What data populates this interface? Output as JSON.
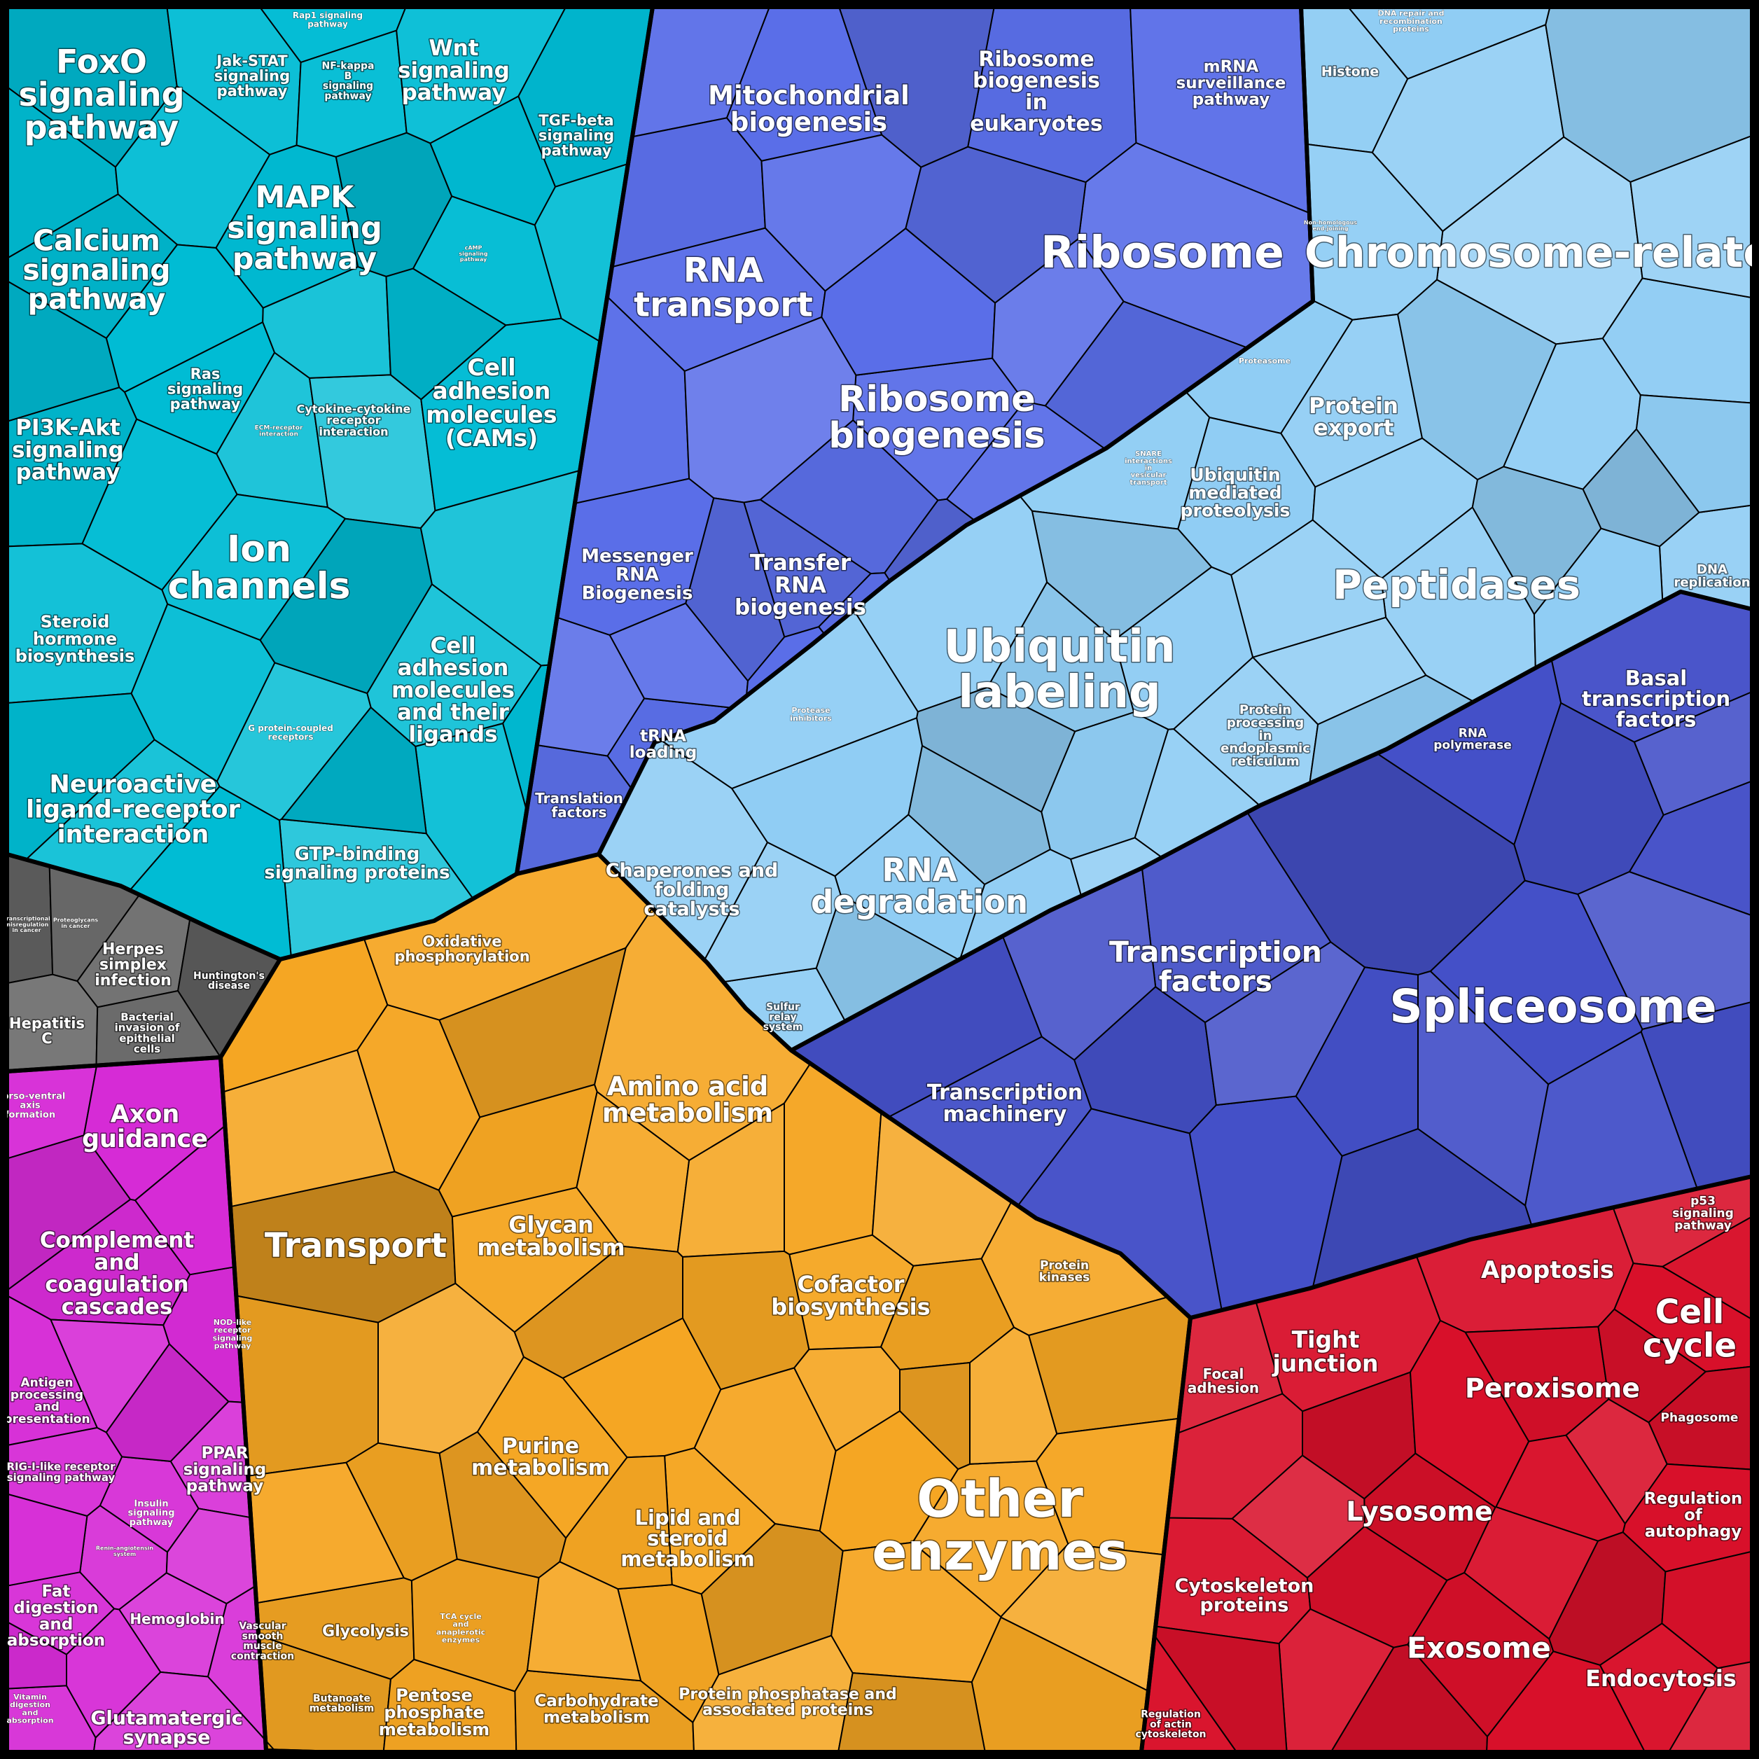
{
  "diagram": {
    "type": "voronoi-treemap",
    "title": "",
    "regions": [
      {
        "id": "signaling",
        "color": "#00bcd4",
        "cells": [
          {
            "text": "FoxO signaling pathway"
          },
          {
            "text": "Jak-STAT signaling pathway"
          },
          {
            "text": "Rap1 signaling pathway"
          },
          {
            "text": "NF-kappa B signaling pathway"
          },
          {
            "text": "Wnt signaling pathway"
          },
          {
            "text": "TGF-beta signaling pathway"
          },
          {
            "text": "MAPK signaling pathway"
          },
          {
            "text": "cAMP signaling pathway"
          },
          {
            "text": "Calcium signaling pathway"
          },
          {
            "text": "Ras signaling pathway"
          },
          {
            "text": "PI3K-Akt signaling pathway"
          },
          {
            "text": "ECM-receptor interaction"
          },
          {
            "text": "Cytokine-cytokine receptor interaction"
          },
          {
            "text": "Cell adhesion molecules (CAMs)"
          },
          {
            "text": "Ion channels"
          },
          {
            "text": "Steroid hormone biosynthesis"
          },
          {
            "text": "Cell adhesion molecules and their ligands"
          },
          {
            "text": "G protein-coupled receptors"
          },
          {
            "text": "Neuroactive ligand-receptor interaction"
          },
          {
            "text": "GTP-binding signaling proteins"
          }
        ]
      },
      {
        "id": "rna",
        "color": "#5a6ee8",
        "cells": [
          {
            "text": "Mitochondrial biogenesis"
          },
          {
            "text": "Ribosome biogenesis in eukaryotes"
          },
          {
            "text": "mRNA surveillance pathway"
          },
          {
            "text": "Ribosome"
          },
          {
            "text": "RNA transport"
          },
          {
            "text": "Ribosome biogenesis"
          },
          {
            "text": "Messenger RNA Biogenesis"
          },
          {
            "text": "Transfer RNA biogenesis"
          },
          {
            "text": "tRNA loading"
          },
          {
            "text": "Translation factors"
          }
        ]
      },
      {
        "id": "chromosome",
        "color": "#90cdf4",
        "cells": [
          {
            "text": "DNA repair and recombination proteins"
          },
          {
            "text": "Histone"
          },
          {
            "text": "Chromosome-related"
          },
          {
            "text": "Non-homologous end-joining"
          },
          {
            "text": "Proteasome"
          },
          {
            "text": "Protein export"
          },
          {
            "text": "SNARE interactions in vesicular transport"
          },
          {
            "text": "Ubiquitin mediated proteolysis"
          },
          {
            "text": "DNA replication"
          },
          {
            "text": "Peptidases"
          },
          {
            "text": "Ubiquitin labeling"
          },
          {
            "text": "Protein processing in endoplasmic reticulum"
          },
          {
            "text": "Protease inhibitors"
          },
          {
            "text": "Chaperones and folding catalysts"
          },
          {
            "text": "RNA degradation"
          },
          {
            "text": "Sulfur relay system"
          }
        ]
      },
      {
        "id": "transcription",
        "color": "#4450c8",
        "cells": [
          {
            "text": "Basal transcription factors"
          },
          {
            "text": "RNA polymerase"
          },
          {
            "text": "Transcription factors"
          },
          {
            "text": "Spliceosome"
          },
          {
            "text": "Transcription machinery"
          }
        ]
      },
      {
        "id": "disease",
        "color": "#5a5a5a",
        "cells": [
          {
            "text": "Transcriptional misregulation in cancer"
          },
          {
            "text": "Proteoglycans in cancer"
          },
          {
            "text": "Herpes simplex infection"
          },
          {
            "text": "Huntington's disease"
          },
          {
            "text": "Hepatitis C"
          },
          {
            "text": "Bacterial invasion of epithelial cells"
          }
        ]
      },
      {
        "id": "metabolism",
        "color": "#f5a623",
        "cells": [
          {
            "text": "Oxidative phosphorylation"
          },
          {
            "text": "Transport"
          },
          {
            "text": "Amino acid metabolism"
          },
          {
            "text": "Glycan metabolism"
          },
          {
            "text": "Cofactor biosynthesis"
          },
          {
            "text": "Purine metabolism"
          },
          {
            "text": "Lipid and steroid metabolism"
          },
          {
            "text": "Glycolysis"
          },
          {
            "text": "TCA cycle and anaplerotic enzymes"
          },
          {
            "text": "Butanoate metabolism"
          },
          {
            "text": "Pentose phosphate metabolism"
          },
          {
            "text": "Carbohydrate metabolism"
          },
          {
            "text": "Protein kinases"
          },
          {
            "text": "Other enzymes"
          },
          {
            "text": "Protein phosphatase and associated proteins"
          }
        ]
      },
      {
        "id": "organismal",
        "color": "#d62bd6",
        "cells": [
          {
            "text": "Dorso-ventral axis formation"
          },
          {
            "text": "Axon guidance"
          },
          {
            "text": "Complement and coagulation cascades"
          },
          {
            "text": "NOD-like receptor signaling pathway"
          },
          {
            "text": "Antigen processing and presentation"
          },
          {
            "text": "RIG-I-like receptor signaling pathway"
          },
          {
            "text": "PPAR signaling pathway"
          },
          {
            "text": "Insulin signaling pathway"
          },
          {
            "text": "Renin-angiotensin system"
          },
          {
            "text": "Fat digestion and absorption"
          },
          {
            "text": "Hemoglobin"
          },
          {
            "text": "Vascular smooth muscle contraction"
          },
          {
            "text": "Vitamin digestion and absorption"
          },
          {
            "text": "Glutamatergic synapse"
          }
        ]
      },
      {
        "id": "cellular",
        "color": "#d8102a",
        "cells": [
          {
            "text": "p53 signaling pathway"
          },
          {
            "text": "Apoptosis"
          },
          {
            "text": "Cell cycle"
          },
          {
            "text": "Tight junction"
          },
          {
            "text": "Focal adhesion"
          },
          {
            "text": "Peroxisome"
          },
          {
            "text": "Phagosome"
          },
          {
            "text": "Regulation of autophagy"
          },
          {
            "text": "Lysosome"
          },
          {
            "text": "Cytoskeleton proteins"
          },
          {
            "text": "Exosome"
          },
          {
            "text": "Endocytosis"
          },
          {
            "text": "Regulation of actin cytoskeleton"
          }
        ]
      }
    ]
  }
}
